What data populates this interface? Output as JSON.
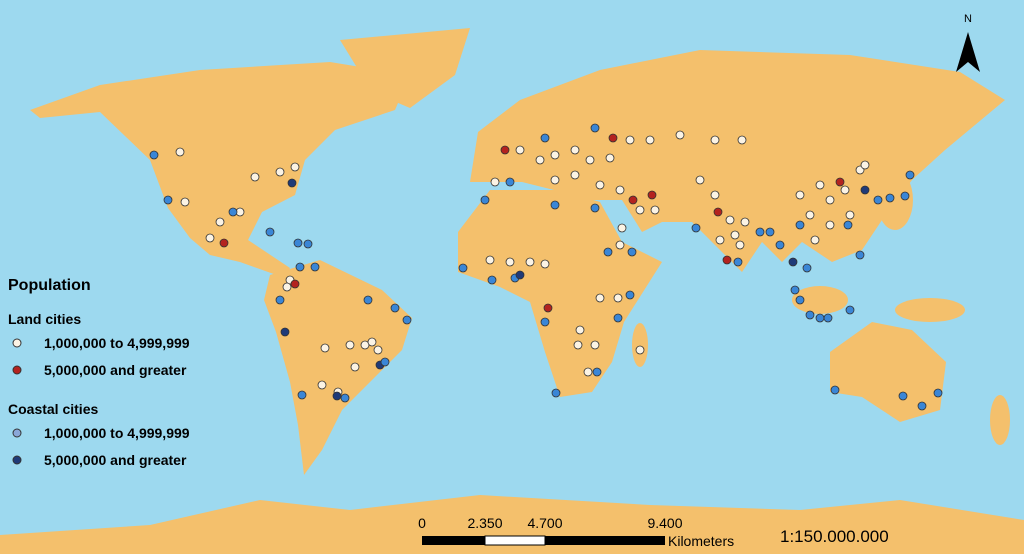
{
  "map": {
    "north_label": "N",
    "legend": {
      "title": "Population",
      "groups": [
        {
          "title": "Land cities",
          "items": [
            "1,000,000 to 4,999,999",
            "5,000,000 and greater"
          ]
        },
        {
          "title": "Coastal cities",
          "items": [
            "1,000,000 to 4,999,999",
            "5,000,000 and greater"
          ]
        }
      ]
    },
    "scale_bar": {
      "ticks": [
        "0",
        "2.350",
        "4.700",
        "9.400"
      ],
      "unit": "Kilometers"
    },
    "scale_ratio": "1:150.000.000"
  }
}
